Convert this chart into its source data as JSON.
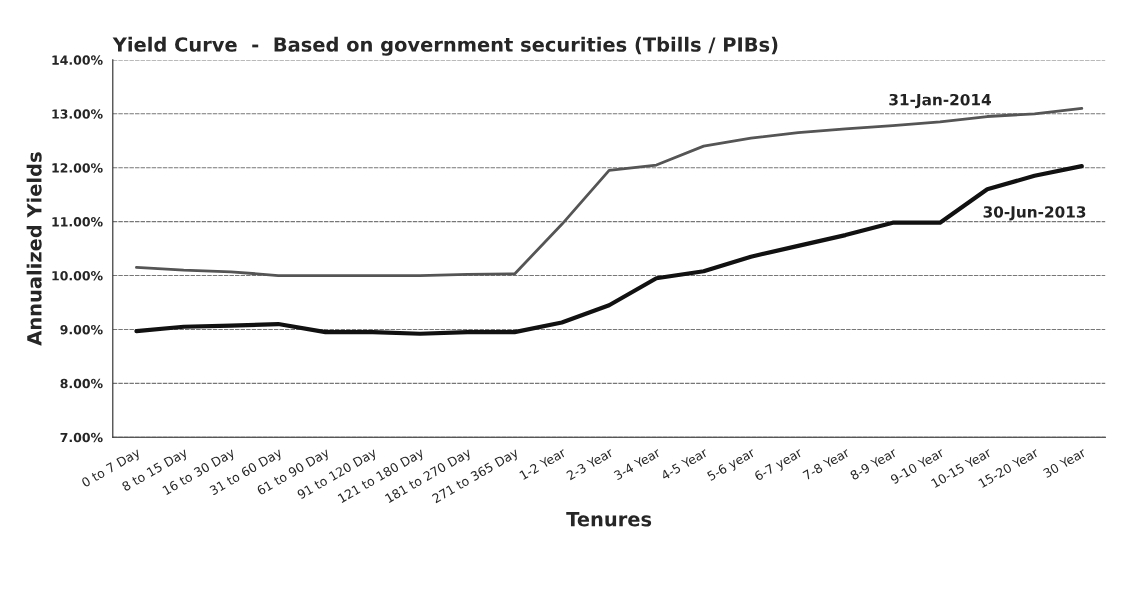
{
  "chart_data": {
    "type": "line",
    "title": "Yield Curve  -  Based on government securities (Tbills / PIBs)",
    "xlabel": "Tenures",
    "ylabel": "Annualized Yields",
    "categories": [
      "0 to 7 Day",
      "8 to 15 Day",
      "16 to 30 Day",
      "31 to 60 Day",
      "61 to 90 Day",
      "91 to 120 Day",
      "121 to 180 Day",
      "181 to 270 Day",
      "271 to 365 Day",
      "1-2 Year",
      "2-3 Year",
      "3-4 Year",
      "4-5 Year",
      "5-6 year",
      "6-7 year",
      "7-8 Year",
      "8-9 Year",
      "9-10 Year",
      "10-15 Year",
      "15-20 Year",
      "30 Year"
    ],
    "series": [
      {
        "name": "31-Jan-2014",
        "color": "#555555",
        "values": [
          10.15,
          10.1,
          10.07,
          10.0,
          10.0,
          10.0,
          10.0,
          10.02,
          10.03,
          10.95,
          11.95,
          12.05,
          12.4,
          12.55,
          12.65,
          12.72,
          12.78,
          12.85,
          12.95,
          13.0,
          13.1
        ]
      },
      {
        "name": "30-Jun-2013",
        "color": "#111111",
        "values": [
          8.97,
          9.05,
          9.07,
          9.1,
          8.95,
          8.95,
          8.92,
          8.95,
          8.95,
          9.13,
          9.45,
          9.95,
          10.08,
          10.35,
          10.55,
          10.75,
          10.98,
          10.98,
          11.6,
          11.85,
          12.03
        ]
      }
    ],
    "ylim": [
      7,
      14
    ],
    "yticks": [
      {
        "value": 7,
        "label": "7.00%"
      },
      {
        "value": 8,
        "label": "8.00%"
      },
      {
        "value": 9,
        "label": "9.00%"
      },
      {
        "value": 10,
        "label": "10.00%"
      },
      {
        "value": 11,
        "label": "11.00%"
      },
      {
        "value": 12,
        "label": "12.00%"
      },
      {
        "value": 13,
        "label": "13.00%"
      },
      {
        "value": 14,
        "label": "14.00%"
      }
    ],
    "grid": "y",
    "legend": false,
    "marker": "none",
    "line_style": "solid"
  }
}
